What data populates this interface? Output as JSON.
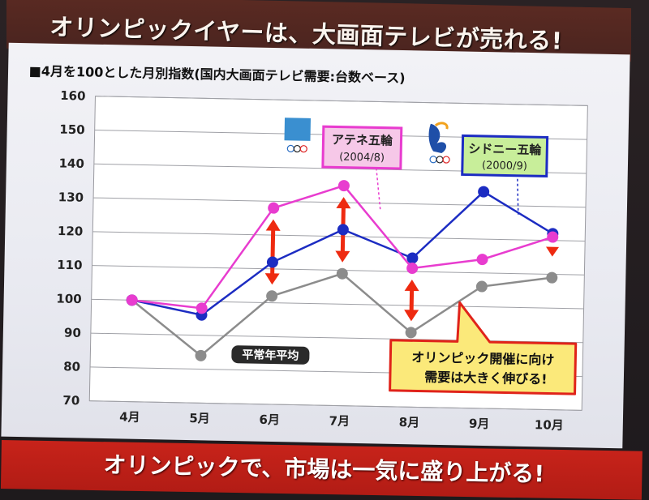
{
  "slide": {
    "title": "オリンピックイヤーは、大画面テレビが売れる!",
    "subtitle": "■4月を100とした月別指数(国内大画面テレビ需要:台数ベース)",
    "footer": "オリンピックで、市場は一気に盛り上がる!"
  },
  "chart_data": {
    "type": "line",
    "title": "■4月を100とした月別指数(国内大画面テレビ需要:台数ベース)",
    "categories": [
      "4月",
      "5月",
      "6月",
      "7月",
      "8月",
      "9月",
      "10月"
    ],
    "ylim": [
      70,
      160
    ],
    "yticks": [
      70,
      80,
      90,
      100,
      110,
      120,
      130,
      140,
      150,
      160
    ],
    "grid": true,
    "series": [
      {
        "name": "アテネ五輪",
        "color": "#e83ccf",
        "values": [
          100,
          98,
          128,
          135,
          111,
          114,
          121
        ]
      },
      {
        "name": "シドニー五輪",
        "color": "#1c2cc2",
        "values": [
          100,
          96,
          112,
          122,
          114,
          134,
          122
        ]
      },
      {
        "name": "平常年平均",
        "color": "#8c8c8c",
        "values": [
          100,
          84,
          102,
          109,
          92,
          106,
          109
        ]
      }
    ],
    "annotations": {
      "athens": {
        "name": "アテネ五輪",
        "sub": "(2004/8)"
      },
      "sydney": {
        "name": "シドニー五輪",
        "sub": "(2000/9)"
      },
      "normal": "平常年平均",
      "callout_line1": "オリンピック開催に向け",
      "callout_line2": "需要は大きく伸びる!"
    },
    "arrow_color": "#ee2a10"
  }
}
